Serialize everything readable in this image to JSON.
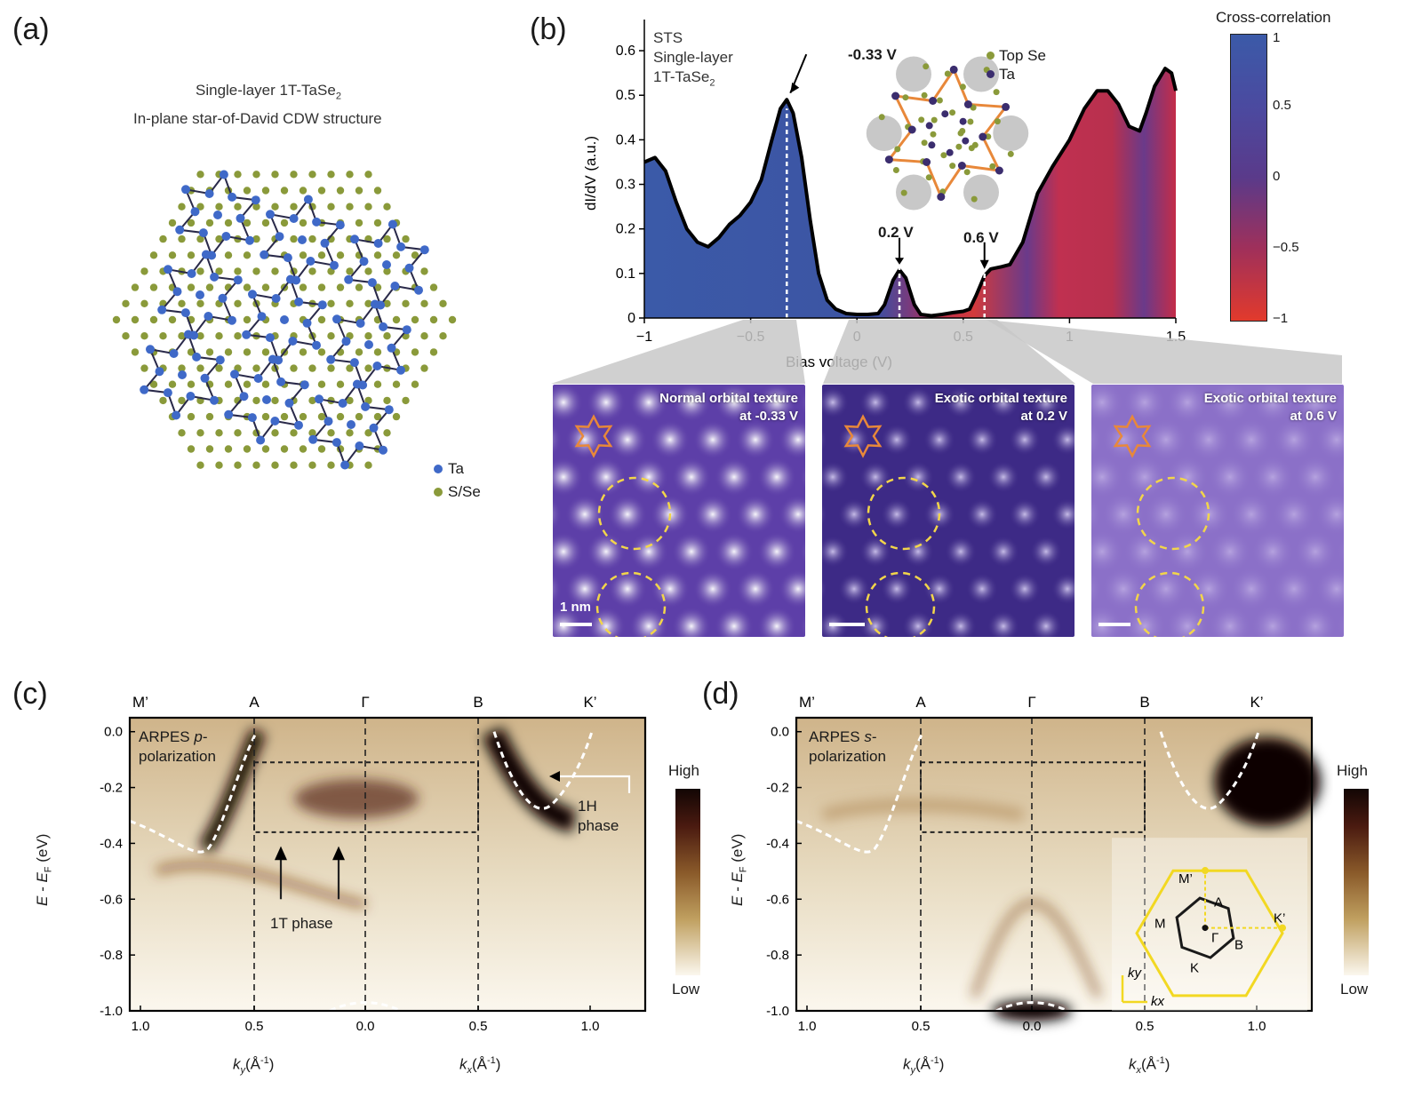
{
  "panels": {
    "a": "(a)",
    "b": "(b)",
    "c": "(c)",
    "d": "(d)"
  },
  "panel_a": {
    "title_line1": "Single-layer 1T-TaSe",
    "title_sub": "2",
    "title_line2": "In-plane star-of-David CDW structure",
    "legend": [
      {
        "label": "Ta",
        "color": "#3f69c8"
      },
      {
        "label": "S/Se",
        "color": "#8a9a3a"
      }
    ]
  },
  "panel_b": {
    "inset_label": [
      "STS",
      "Single-layer",
      "1T-TaSe"
    ],
    "inset_sub": "2",
    "inset_legend": [
      {
        "label": "Top Se",
        "color": "#8a9a3a"
      },
      {
        "label": "Ta",
        "color": "#3b2d6e"
      }
    ],
    "annotations": [
      "-0.33 V",
      "0.2 V",
      "0.6 V"
    ],
    "colorbar": {
      "title": "Cross-correlation",
      "ticks": [
        "1",
        "0.5",
        "0",
        "−0.5",
        "−1"
      ]
    },
    "stm_images": [
      {
        "title": "Normal orbital texture",
        "subtitle": "at -0.33 V",
        "scale": "1 nm"
      },
      {
        "title": "Exotic orbital texture",
        "subtitle": "at 0.2 V"
      },
      {
        "title": "Exotic orbital texture",
        "subtitle": "at 0.6 V"
      }
    ]
  },
  "panel_c": {
    "label_top": [
      "M’",
      "A",
      "Γ",
      "B",
      "K’"
    ],
    "ann_title": "ARPES ",
    "ann_pol": "p",
    "ann_rest": "-",
    "ann_line2": "polarization",
    "phase_1t": "1T phase",
    "phase_1h": [
      "1H",
      "phase"
    ],
    "colorbar": {
      "high": "High",
      "low": "Low"
    },
    "xlabel_left": "k",
    "xlabel_left_sub": "y",
    "xlabel_right": "k",
    "xlabel_right_sub": "x",
    "xunit": "(Å",
    "xunit_sup": "-1",
    "ylabel": "E - E",
    "ylabel_sub": "F",
    "yunit": "(eV)"
  },
  "panel_d": {
    "label_top": [
      "M’",
      "A",
      "Γ",
      "B",
      "K’"
    ],
    "ann_title": "ARPES ",
    "ann_pol": "s",
    "ann_rest": "-",
    "ann_line2": "polarization",
    "bz_labels": [
      "M’",
      "A",
      "M",
      "Γ",
      "B",
      "K",
      "K’"
    ],
    "axes_labels": [
      "k",
      "y",
      "k",
      "x"
    ],
    "colorbar": {
      "high": "High",
      "low": "Low"
    }
  },
  "chart_data": [
    {
      "type": "area",
      "title": "STS dI/dV spectrum (single-layer 1T-TaSe2)",
      "xlabel": "Bias voltage (V)",
      "ylabel": "dI/dV (a.u.)",
      "xlim": [
        -1,
        1.5
      ],
      "ylim": [
        0,
        0.65
      ],
      "x_ticks": [
        -1,
        -0.5,
        0,
        0.5,
        1,
        1.5
      ],
      "x_tick_labels": [
        "−1",
        "−0.5",
        "0",
        "0.5",
        "1",
        "1.5"
      ],
      "y_ticks": [
        0,
        0.1,
        0.2,
        0.3,
        0.4,
        0.5,
        0.6
      ],
      "y_tick_labels": [
        "0",
        "0.1",
        "0.2",
        "0.3",
        "0.4",
        "0.5",
        "0.6"
      ],
      "x": [
        -1.0,
        -0.95,
        -0.9,
        -0.85,
        -0.8,
        -0.75,
        -0.7,
        -0.65,
        -0.6,
        -0.55,
        -0.5,
        -0.45,
        -0.4,
        -0.36,
        -0.33,
        -0.3,
        -0.26,
        -0.22,
        -0.18,
        -0.14,
        -0.1,
        -0.05,
        0.0,
        0.05,
        0.1,
        0.13,
        0.17,
        0.2,
        0.23,
        0.27,
        0.3,
        0.35,
        0.4,
        0.45,
        0.5,
        0.53,
        0.56,
        0.6,
        0.63,
        0.68,
        0.72,
        0.78,
        0.85,
        0.92,
        1.0,
        1.07,
        1.13,
        1.18,
        1.23,
        1.28,
        1.33,
        1.36,
        1.4,
        1.45,
        1.48,
        1.5
      ],
      "values": [
        0.35,
        0.36,
        0.33,
        0.26,
        0.2,
        0.17,
        0.16,
        0.18,
        0.21,
        0.23,
        0.26,
        0.31,
        0.4,
        0.47,
        0.49,
        0.46,
        0.36,
        0.22,
        0.1,
        0.04,
        0.02,
        0.01,
        0.008,
        0.008,
        0.01,
        0.03,
        0.085,
        0.108,
        0.09,
        0.03,
        0.008,
        0.005,
        0.008,
        0.012,
        0.015,
        0.02,
        0.05,
        0.095,
        0.11,
        0.115,
        0.12,
        0.17,
        0.28,
        0.34,
        0.4,
        0.47,
        0.51,
        0.51,
        0.48,
        0.43,
        0.42,
        0.46,
        0.52,
        0.56,
        0.55,
        0.51
      ],
      "annotations": [
        {
          "x": -0.33,
          "label": "-0.33 V"
        },
        {
          "x": 0.2,
          "label": "0.2 V"
        },
        {
          "x": 0.6,
          "label": "0.6 V"
        }
      ],
      "colormap": {
        "title": "Cross-correlation",
        "range": [
          -1,
          1
        ]
      }
    },
    {
      "type": "heatmap",
      "title": "ARPES p-polarization",
      "ylabel": "E - EF (eV)",
      "ylim": [
        -1.0,
        0.05
      ],
      "y_ticks": [
        0.0,
        -0.2,
        -0.4,
        -0.6,
        -0.8,
        -1.0
      ],
      "y_tick_labels": [
        "0.0",
        "-0.2",
        "-0.4",
        "-0.6",
        "-0.8",
        "-1.0"
      ],
      "x_ticks": [
        1.0,
        0.5,
        0.0,
        0.5,
        1.0
      ],
      "x_tick_labels": [
        "1.0",
        "0.5",
        "0.0",
        "0.5",
        "1.0"
      ],
      "xlabel_left": "ky (Å^-1)",
      "xlabel_right": "kx (Å^-1)",
      "high_symmetry_points": [
        "M’",
        "A",
        "Γ",
        "B",
        "K’"
      ],
      "colorbar": [
        "High",
        "Low"
      ]
    },
    {
      "type": "heatmap",
      "title": "ARPES s-polarization",
      "ylabel": "E - EF (eV)",
      "ylim": [
        -1.0,
        0.05
      ],
      "y_ticks": [
        0.0,
        -0.2,
        -0.4,
        -0.6,
        -0.8,
        -1.0
      ],
      "y_tick_labels": [
        "0.0",
        "-0.2",
        "-0.4",
        "-0.6",
        "-0.8",
        "-1.0"
      ],
      "x_ticks": [
        1.0,
        0.5,
        0.0,
        0.5,
        1.0
      ],
      "x_tick_labels": [
        "1.0",
        "0.5",
        "0.0",
        "0.5",
        "1.0"
      ],
      "xlabel_left": "ky (Å^-1)",
      "xlabel_right": "kx (Å^-1)",
      "high_symmetry_points": [
        "M’",
        "A",
        "Γ",
        "B",
        "K’"
      ],
      "colorbar": [
        "High",
        "Low"
      ]
    }
  ]
}
